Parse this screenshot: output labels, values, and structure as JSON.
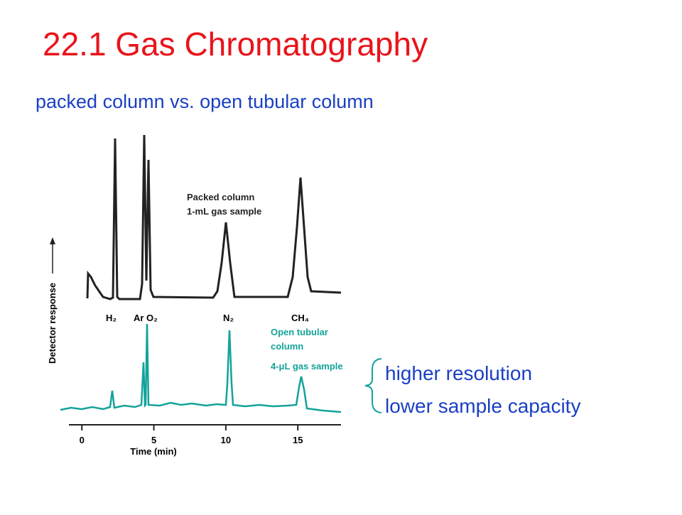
{
  "title": "22.1 Gas Chromatography",
  "subtitle": "packed column vs. open tubular column",
  "chart_data": {
    "type": "chromatogram",
    "x_label": "Time (min)",
    "y_label": "Detector response",
    "xlim": [
      -0.9,
      18
    ],
    "xticks": [
      0,
      5,
      10,
      15
    ],
    "peak_labels": [
      "H₂",
      "Ar O₂",
      "N₂",
      "CH₄"
    ],
    "packed_label": [
      "Packed column",
      "1-mL gas sample"
    ],
    "open_label": [
      "Open tubular",
      "column",
      "4-μL gas sample"
    ],
    "packed_color": "#222222",
    "open_color": "#13a39a"
  },
  "notes": [
    "higher resolution",
    "lower sample capacity"
  ]
}
